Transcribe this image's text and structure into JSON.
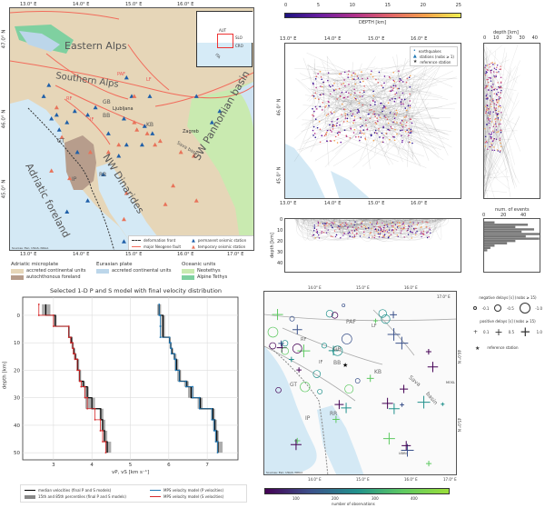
{
  "panel_a": {
    "lon_ticks": [
      "13.0° E",
      "14.0° E",
      "15.0° E",
      "16.0° E",
      "17.0° E"
    ],
    "lat_ticks": [
      "47.0° N",
      "46.0° N",
      "45.0° N"
    ],
    "labels": {
      "eastern_alps": "Eastern Alps",
      "southern_alps": "Southern Alps",
      "paf": "PAF",
      "lf": "LF",
      "rf": "RF",
      "if": "IF",
      "gb": "GB",
      "bb": "BB",
      "ljubljana": "Ljubljana",
      "kb": "KB",
      "zagreb": "Zagreb",
      "nw_dinarides": "NW Dinarides",
      "pannonian": "SW Pannonian basin",
      "sava": "Sava basin",
      "gt": "GT",
      "ip": "IP",
      "rr": "RR",
      "adriatic": "Adriatic foreland"
    },
    "inset": {
      "aut": "AUT",
      "slo": "SLO",
      "cro": "CRO",
      "ita": "ITA"
    },
    "attribution": "Sources: Esri, USGS, NOAA",
    "legend": {
      "deformation_front": "deformation front",
      "fault": "major Neogene fault",
      "permanent": "permanent seismic station",
      "temporary": "temporary seismic station"
    },
    "units_legend": {
      "adriatic_title": "Adriatic microplate",
      "accreted": "accreted continental units",
      "autochthonous": "autochthonous foreland",
      "eurasian_title": "Eurasian plate",
      "eurasian_accreted": "accreted continental units",
      "oceanic_title": "Oceanic units",
      "neotethys": "Neotethys",
      "alpine_tethys": "Alpine Tethys"
    },
    "colors": {
      "land": "#e6d6b8",
      "sea": "#d4e9f5",
      "foreland": "#b79d8c",
      "neotethys": "#c9eab0",
      "alpine_tethys": "#7fd0a0",
      "fault": "#f26b5b",
      "permanent": "#1f5fa8",
      "temporary": "#e8735a"
    },
    "permanent_stations": [
      [
        13.4,
        46.45
      ],
      [
        13.3,
        46.3
      ],
      [
        13.55,
        46.05
      ],
      [
        13.75,
        45.95
      ],
      [
        13.9,
        46.1
      ],
      [
        13.45,
        46.0
      ],
      [
        13.6,
        45.85
      ],
      [
        14.15,
        46.05
      ],
      [
        14.3,
        46.15
      ],
      [
        14.55,
        45.8
      ],
      [
        14.85,
        46.0
      ],
      [
        14.9,
        46.55
      ],
      [
        15.0,
        46.3
      ],
      [
        15.35,
        46.3
      ],
      [
        15.25,
        45.9
      ],
      [
        15.4,
        45.8
      ],
      [
        15.2,
        45.65
      ],
      [
        14.9,
        45.65
      ],
      [
        14.45,
        45.25
      ],
      [
        14.15,
        44.9
      ],
      [
        13.75,
        44.75
      ],
      [
        14.85,
        44.35
      ],
      [
        15.8,
        44.35
      ],
      [
        16.25,
        46.3
      ],
      [
        16.55,
        45.95
      ],
      [
        16.7,
        46.1
      ],
      [
        14.75,
        45.5
      ],
      [
        13.95,
        45.55
      ]
    ],
    "temporary_stations": [
      [
        13.55,
        46.15
      ],
      [
        13.65,
        45.75
      ],
      [
        14.2,
        45.55
      ],
      [
        14.55,
        45.55
      ],
      [
        14.75,
        45.65
      ],
      [
        15.05,
        45.95
      ],
      [
        15.1,
        45.85
      ],
      [
        15.3,
        45.8
      ],
      [
        15.55,
        45.7
      ],
      [
        15.45,
        45.65
      ],
      [
        15.95,
        45.55
      ],
      [
        16.2,
        45.5
      ],
      [
        13.8,
        45.2
      ],
      [
        14.9,
        45.0
      ],
      [
        15.8,
        45.1
      ],
      [
        16.25,
        44.9
      ],
      [
        15.65,
        44.85
      ],
      [
        14.85,
        44.65
      ],
      [
        15.05,
        46.3
      ],
      [
        13.45,
        45.3
      ]
    ]
  },
  "panel_b": {
    "colorbar": {
      "label": "DEPTH [km]",
      "ticks": [
        "0",
        "5",
        "10",
        "15",
        "20",
        "25"
      ]
    },
    "lon_ticks": [
      "13.0° E",
      "14.0° E",
      "15.0° E",
      "16.0° E"
    ],
    "lat_ticks": [
      "46.0° N",
      "45.0° N"
    ],
    "legend": {
      "earthquakes": "earthquakes",
      "stations": "stations (nobs ≥ 1)",
      "reference": "reference station"
    },
    "profile": {
      "label": "depth [km]",
      "ticks": [
        "0",
        "10",
        "20",
        "30",
        "40"
      ]
    },
    "section": {
      "label": "depth [km]",
      "ticks": [
        "0",
        "10",
        "20",
        "30",
        "40"
      ]
    },
    "histogram": {
      "label": "num. of events",
      "ticks": [
        "0",
        "20",
        "40"
      ]
    }
  },
  "chart_data": [
    {
      "type": "line",
      "title": "Selected 1-D P and S model with final velocity distribution",
      "xlabel": "vP, vS [km s⁻¹]",
      "ylabel": "depth [km]",
      "xlim": [
        2.2,
        7.8
      ],
      "ylim": [
        52.6,
        -6.6
      ],
      "grid": true,
      "xticks": [
        "3",
        "4",
        "5",
        "6",
        "7"
      ],
      "yticks": [
        "0",
        "10",
        "20",
        "30",
        "40",
        "50"
      ],
      "layer_tops": [
        -4,
        0,
        4,
        8,
        10,
        12,
        14,
        16,
        20,
        24,
        26,
        30,
        34,
        38,
        42,
        46
      ],
      "layer_bottom": 50,
      "series": [
        {
          "name": "MPS velocity model (P velocities)",
          "color": "#1f77b4",
          "values": [
            5.75,
            5.78,
            5.78,
            6.02,
            6.05,
            6.07,
            6.15,
            6.18,
            6.27,
            6.45,
            6.62,
            6.8,
            7.12,
            7.18,
            7.22,
            7.27
          ]
        },
        {
          "name": "MPS velocity model (S velocities)",
          "color": "#d62728",
          "values": [
            2.62,
            3.0,
            3.4,
            3.45,
            3.5,
            3.52,
            3.56,
            3.62,
            3.68,
            3.72,
            3.82,
            3.88,
            4.08,
            4.22,
            4.28,
            4.36
          ]
        },
        {
          "name": "median velocities (final P and S models)",
          "color": "#000000",
          "p": [
            5.75,
            5.85,
            5.85,
            6.02,
            6.05,
            6.08,
            6.15,
            6.2,
            6.28,
            6.47,
            6.58,
            6.82,
            7.15,
            7.2,
            7.25,
            7.28
          ],
          "s": [
            2.8,
            3.05,
            3.4,
            3.47,
            3.5,
            3.53,
            3.57,
            3.63,
            3.68,
            3.78,
            3.88,
            4.0,
            4.23,
            4.28,
            4.33,
            4.4
          ]
        },
        {
          "name": "15th and 85th percentiles (final P and S models)",
          "color": "#888888",
          "p_lo": [
            5.7,
            5.8,
            5.8,
            6.0,
            6.02,
            6.05,
            6.12,
            6.15,
            6.22,
            6.4,
            6.5,
            6.75,
            7.1,
            7.15,
            7.2,
            7.25
          ],
          "p_hi": [
            5.8,
            5.9,
            5.9,
            6.05,
            6.08,
            6.12,
            6.2,
            6.25,
            6.32,
            6.52,
            6.65,
            6.88,
            7.2,
            7.25,
            7.3,
            7.4
          ],
          "s_lo": [
            2.7,
            3.0,
            3.38,
            3.43,
            3.47,
            3.5,
            3.53,
            3.6,
            3.65,
            3.72,
            3.8,
            3.83,
            4.2,
            4.25,
            4.3,
            4.35
          ],
          "s_hi": [
            2.92,
            3.08,
            3.42,
            3.5,
            3.53,
            3.57,
            3.6,
            3.67,
            3.72,
            3.82,
            3.92,
            4.08,
            4.3,
            4.35,
            4.4,
            4.5
          ]
        }
      ]
    },
    {
      "type": "bar",
      "title": "",
      "xlabel": "num. of events",
      "ylabel": "depth [km]",
      "xlim": [
        0,
        55
      ],
      "ylim": [
        45,
        -2
      ],
      "bin_tops": [
        0,
        2,
        4,
        6,
        8,
        10,
        12,
        14,
        16,
        18,
        20,
        22,
        24
      ],
      "values": [
        10,
        42,
        30,
        48,
        36,
        55,
        40,
        53,
        30,
        22,
        10,
        6,
        3
      ]
    }
  ],
  "panel_d": {
    "lon_ticks": [
      "13.0° E",
      "14.0° E",
      "15.0° E",
      "16.0° E",
      "17.0° E"
    ],
    "lat_ticks": [
      "46.0° N",
      "45.0° N"
    ],
    "labels": {
      "paf": "PAF",
      "lf": "LF",
      "rf": "RF",
      "if": "IF",
      "gb": "GB",
      "bb": "BB",
      "kb": "KB",
      "gt": "GT",
      "ip": "IP",
      "rr": "RR",
      "sava": "Sava",
      "basin": "basin",
      "mosl": "MOSL",
      "udbi": "UDBI"
    },
    "attribution": "Sources: Esri, USGS, NOAA",
    "colorbar": {
      "label": "number of observations",
      "ticks": [
        "100",
        "200",
        "300",
        "400"
      ]
    },
    "legend": {
      "neg_title": "negative delays [s] (nobs ≥ 15)",
      "neg": [
        "-0.1",
        "-0.5",
        "-1.0"
      ],
      "pos_title": "positive delays [s] (nobs ≥ 15)",
      "pos": [
        "0.1",
        "0.5",
        "1.0"
      ],
      "reference": "reference station"
    }
  }
}
